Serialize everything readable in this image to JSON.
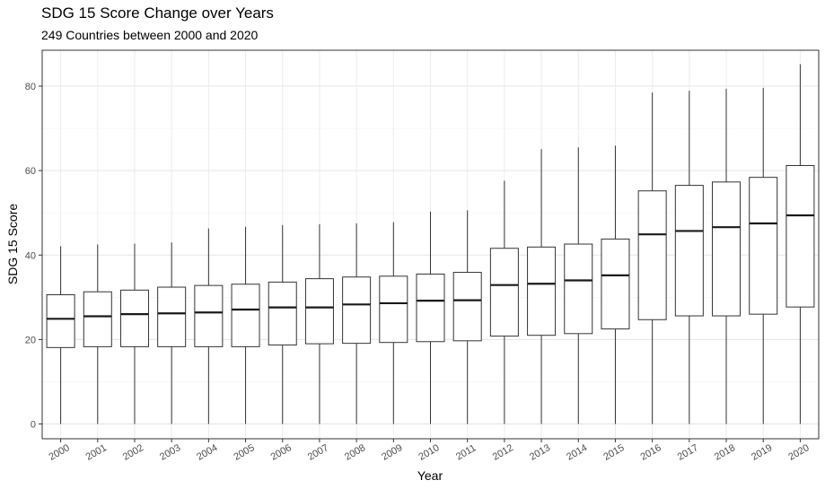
{
  "chart_data": {
    "type": "boxplot",
    "title": "SDG 15 Score Change over Years",
    "subtitle": "249 Countries between 2000 and 2020",
    "xlabel": "Year",
    "ylabel": "SDG 15 Score",
    "ylim": [
      -3.5,
      88.5
    ],
    "yticks": [
      0,
      20,
      40,
      60,
      80
    ],
    "grid": true,
    "categories": [
      "2000",
      "2001",
      "2002",
      "2003",
      "2004",
      "2005",
      "2006",
      "2007",
      "2008",
      "2009",
      "2010",
      "2011",
      "2012",
      "2013",
      "2014",
      "2015",
      "2016",
      "2017",
      "2018",
      "2019",
      "2020"
    ],
    "boxes": [
      {
        "min": 0,
        "q1": 18.1,
        "median": 24.9,
        "q3": 30.6,
        "max": 42.1
      },
      {
        "min": 0,
        "q1": 18.3,
        "median": 25.5,
        "q3": 31.3,
        "max": 42.5
      },
      {
        "min": 0,
        "q1": 18.3,
        "median": 26.0,
        "q3": 31.7,
        "max": 42.7
      },
      {
        "min": 0,
        "q1": 18.3,
        "median": 26.2,
        "q3": 32.4,
        "max": 43.0
      },
      {
        "min": 0,
        "q1": 18.3,
        "median": 26.4,
        "q3": 32.8,
        "max": 46.3
      },
      {
        "min": 0,
        "q1": 18.3,
        "median": 27.1,
        "q3": 33.1,
        "max": 46.7
      },
      {
        "min": 0,
        "q1": 18.7,
        "median": 27.6,
        "q3": 33.6,
        "max": 47.1
      },
      {
        "min": 0,
        "q1": 19.0,
        "median": 27.6,
        "q3": 34.4,
        "max": 47.3
      },
      {
        "min": 0,
        "q1": 19.1,
        "median": 28.3,
        "q3": 34.8,
        "max": 47.5
      },
      {
        "min": 0,
        "q1": 19.3,
        "median": 28.6,
        "q3": 35.0,
        "max": 47.8
      },
      {
        "min": 0,
        "q1": 19.5,
        "median": 29.2,
        "q3": 35.5,
        "max": 50.3
      },
      {
        "min": 0,
        "q1": 19.7,
        "median": 29.3,
        "q3": 35.9,
        "max": 50.6
      },
      {
        "min": 0,
        "q1": 20.8,
        "median": 32.9,
        "q3": 41.6,
        "max": 57.6
      },
      {
        "min": 0,
        "q1": 21.0,
        "median": 33.2,
        "q3": 41.9,
        "max": 65.1
      },
      {
        "min": 0,
        "q1": 21.4,
        "median": 34.0,
        "q3": 42.6,
        "max": 65.5
      },
      {
        "min": 0,
        "q1": 22.5,
        "median": 35.2,
        "q3": 43.8,
        "max": 65.9
      },
      {
        "min": 0,
        "q1": 24.7,
        "median": 44.9,
        "q3": 55.2,
        "max": 78.5
      },
      {
        "min": 0,
        "q1": 25.6,
        "median": 45.7,
        "q3": 56.5,
        "max": 78.9
      },
      {
        "min": 0,
        "q1": 25.6,
        "median": 46.6,
        "q3": 57.3,
        "max": 79.4
      },
      {
        "min": 0,
        "q1": 26.0,
        "median": 47.5,
        "q3": 58.4,
        "max": 79.6
      },
      {
        "min": 0,
        "q1": 27.7,
        "median": 49.4,
        "q3": 61.2,
        "max": 85.2
      }
    ]
  }
}
